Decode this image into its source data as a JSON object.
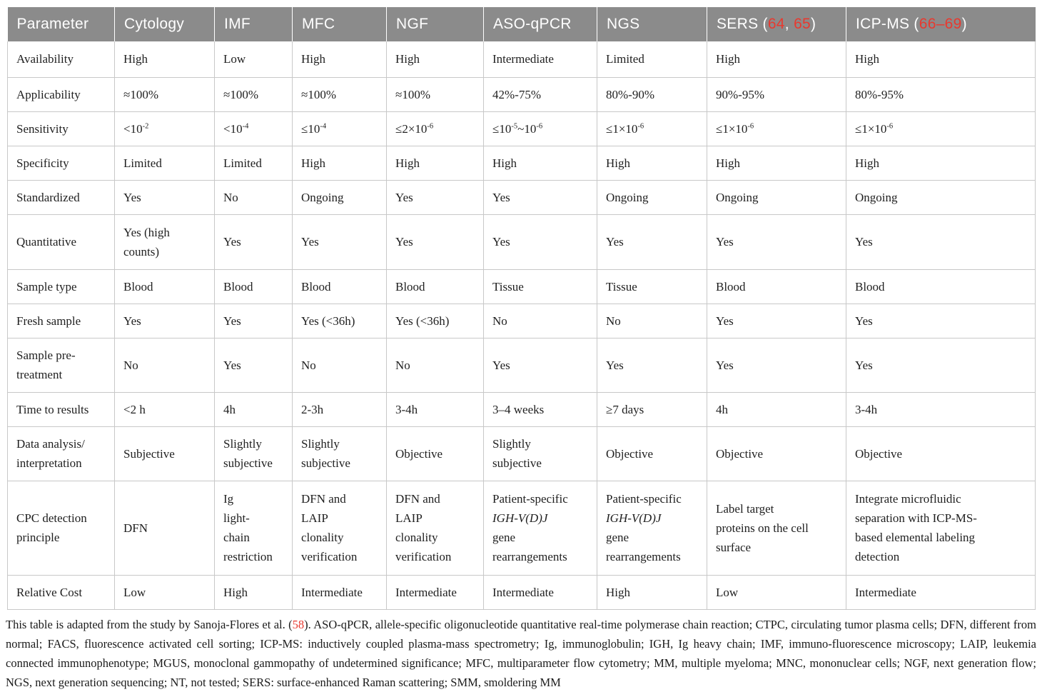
{
  "colors": {
    "header_bg": "#8b8b8b",
    "header_text": "#ffffff",
    "body_text": "#1f1f1f",
    "border": "#c8c8c8",
    "citation_red": "#e8392f"
  },
  "table": {
    "header": [
      "Parameter",
      "Cytology",
      "IMF",
      "MFC",
      "NGF",
      "ASO-qPCR",
      "NGS",
      {
        "segments": [
          {
            "text": "SERS ("
          },
          {
            "text": "64",
            "link": true
          },
          {
            "text": ", "
          },
          {
            "text": "65",
            "link": true
          },
          {
            "text": ")"
          }
        ]
      },
      {
        "segments": [
          {
            "text": "ICP-MS ("
          },
          {
            "text": "66–69",
            "link": true
          },
          {
            "text": ")"
          }
        ]
      }
    ],
    "rows": [
      {
        "label": "Availability",
        "cells": [
          "High",
          "Low",
          "High",
          "High",
          "Intermediate",
          "Limited",
          "High",
          "High"
        ]
      },
      {
        "label": "Applicability",
        "cells": [
          "≈100%",
          "≈100%",
          "≈100%",
          "≈100%",
          "42%-75%",
          "80%-90%",
          "90%-95%",
          "80%-95%"
        ]
      },
      {
        "label": "Sensitivity",
        "cells": [
          {
            "segments": [
              {
                "text": "<10"
              },
              {
                "text": "-2",
                "sup": true
              }
            ]
          },
          {
            "segments": [
              {
                "text": "<10"
              },
              {
                "text": "-4",
                "sup": true
              }
            ]
          },
          {
            "segments": [
              {
                "text": "≤10"
              },
              {
                "text": "-4",
                "sup": true
              }
            ]
          },
          {
            "segments": [
              {
                "text": "≤2×10"
              },
              {
                "text": "-6",
                "sup": true
              }
            ]
          },
          {
            "segments": [
              {
                "text": "≤10"
              },
              {
                "text": "-5",
                "sup": true
              },
              {
                "text": "~10"
              },
              {
                "text": "-6",
                "sup": true
              }
            ]
          },
          {
            "segments": [
              {
                "text": "≤1×10"
              },
              {
                "text": "-6",
                "sup": true
              }
            ]
          },
          {
            "segments": [
              {
                "text": "≤1×10"
              },
              {
                "text": "-6",
                "sup": true
              }
            ]
          },
          {
            "segments": [
              {
                "text": "≤1×10"
              },
              {
                "text": "-6",
                "sup": true
              }
            ]
          }
        ]
      },
      {
        "label": "Specificity",
        "cells": [
          "Limited",
          "Limited",
          "High",
          "High",
          "High",
          "High",
          "High",
          "High"
        ]
      },
      {
        "label": "Standardized",
        "cells": [
          "Yes",
          "No",
          "Ongoing",
          "Yes",
          "Yes",
          "Ongoing",
          "Ongoing",
          "Ongoing"
        ]
      },
      {
        "label": "Quantitative",
        "cells": [
          "Yes (high\ncounts)",
          "Yes",
          "Yes",
          "Yes",
          "Yes",
          "Yes",
          "Yes",
          "Yes"
        ]
      },
      {
        "label": "Sample type",
        "cells": [
          "Blood",
          "Blood",
          "Blood",
          "Blood",
          "Tissue",
          "Tissue",
          "Blood",
          "Blood"
        ]
      },
      {
        "label": "Fresh sample",
        "cells": [
          "Yes",
          "Yes",
          "Yes (<36h)",
          "Yes (<36h)",
          "No",
          "No",
          "Yes",
          "Yes"
        ]
      },
      {
        "label": "Sample pre-\ntreatment",
        "cells": [
          "No",
          "Yes",
          "No",
          "No",
          "Yes",
          "Yes",
          "Yes",
          "Yes"
        ]
      },
      {
        "label": "Time to results",
        "cells": [
          "<2 h",
          "4h",
          "2-3h",
          "3-4h",
          "3–4 weeks",
          "≥7 days",
          "4h",
          "3-4h"
        ]
      },
      {
        "label": "Data analysis/\ninterpretation",
        "cells": [
          "Subjective",
          "Slightly\nsubjective",
          "Slightly\nsubjective",
          "Objective",
          "Slightly\nsubjective",
          "Objective",
          "Objective",
          "Objective"
        ]
      },
      {
        "label": "CPC detection\nprinciple",
        "cells": [
          "DFN",
          "Ig\nlight-\nchain\nrestriction",
          "DFN and\nLAIP\nclonality\nverification",
          "DFN and\nLAIP\nclonality\nverification",
          {
            "segments": [
              {
                "text": "Patient-specific\n"
              },
              {
                "text": "IGH-V(D)J",
                "italic": true
              },
              {
                "text": "\ngene\nrearrangements"
              }
            ]
          },
          {
            "segments": [
              {
                "text": "Patient-specific\n"
              },
              {
                "text": "IGH-V(D)J",
                "italic": true
              },
              {
                "text": "\ngene\nrearrangements"
              }
            ]
          },
          "Label target\nproteins on the cell\nsurface",
          "Integrate microfluidic\nseparation with ICP-MS-\nbased elemental labeling\ndetection"
        ]
      },
      {
        "label": "Relative Cost",
        "cells": [
          "Low",
          "High",
          "Intermediate",
          "Intermediate",
          "Intermediate",
          "High",
          "Low",
          "Intermediate"
        ]
      }
    ]
  },
  "footnote": {
    "segments": [
      {
        "text": "This table is adapted from the study by Sanoja-Flores et al. ("
      },
      {
        "text": "58",
        "link": true
      },
      {
        "text": "). ASO-qPCR, allele-specific oligonucleotide quantitative real-time polymerase chain reaction; CTPC, circulating tumor plasma cells; DFN, different from normal; FACS, fluorescence activated cell sorting; ICP-MS: inductively coupled plasma-mass spectrometry; Ig, immunoglobulin; IGH, Ig heavy chain; IMF, immuno-fluorescence microscopy; LAIP, leukemia connected immunophenotype; MGUS, monoclonal gammopathy of undetermined significance; MFC, multiparameter flow cytometry; MM, multiple myeloma; MNC, mononuclear cells; NGF, next generation flow; NGS, next generation sequencing; NT, not tested; SERS: surface-enhanced Raman scattering; SMM, smoldering MM"
      }
    ]
  }
}
